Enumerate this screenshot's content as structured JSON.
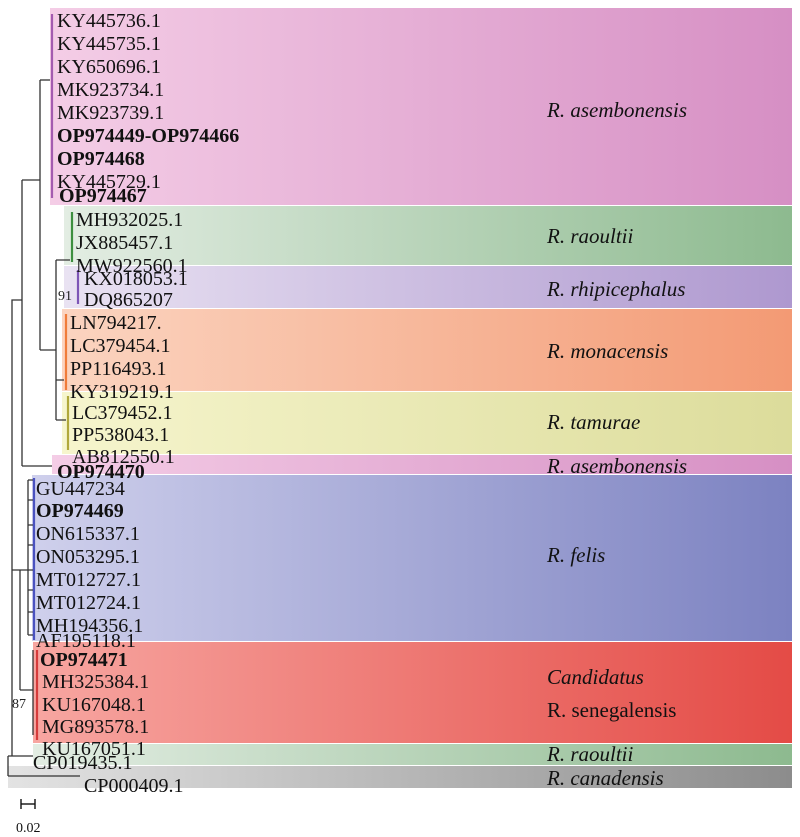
{
  "colors": {
    "asembonensis": [
      "#f4cde6",
      "#d68fc4"
    ],
    "raoultii": [
      "#e3ede3",
      "#8dba8f"
    ],
    "rhipicephalus": [
      "#e9e2f2",
      "#ae98cf"
    ],
    "monacensis": [
      "#fbd4c0",
      "#f39a74"
    ],
    "tamurae": [
      "#f6f5cd",
      "#dcdc9b"
    ],
    "felis": [
      "#cfd0ec",
      "#7c82c1"
    ],
    "senegalensis": [
      "#f7a6a1",
      "#e44b46"
    ],
    "canadensis": [
      "#e3e3e3",
      "#8c8c8c"
    ]
  },
  "clades": [
    {
      "id": "asembonensis-1",
      "label": "R. asembonensis",
      "label2": "",
      "italic": true
    },
    {
      "id": "raoultii-1",
      "label": "R. raoultii",
      "label2": "",
      "italic": true
    },
    {
      "id": "rhipicephalus",
      "label": "R. rhipicephalus",
      "label2": "",
      "italic": true
    },
    {
      "id": "monacensis",
      "label": "R. monacensis",
      "label2": "",
      "italic": true
    },
    {
      "id": "tamurae",
      "label": "R. tamurae",
      "label2": "",
      "italic": true
    },
    {
      "id": "asembonensis-2",
      "label": "R. asembonensis",
      "label2": "",
      "italic": true
    },
    {
      "id": "felis",
      "label": "R. felis",
      "label2": "",
      "italic": true
    },
    {
      "id": "senegalensis",
      "label": "Candidatus",
      "label2": "R. senegalensis",
      "italic": true
    },
    {
      "id": "raoultii-2",
      "label": "R. raoultii",
      "label2": "",
      "italic": true
    },
    {
      "id": "canadensis",
      "label": "R. canadensis",
      "label2": "",
      "italic": true
    }
  ],
  "taxa": [
    {
      "name": "KY445736.1",
      "bold": false
    },
    {
      "name": "KY445735.1",
      "bold": false
    },
    {
      "name": "KY650696.1",
      "bold": false
    },
    {
      "name": "MK923734.1",
      "bold": false
    },
    {
      "name": "MK923739.1",
      "bold": false
    },
    {
      "name": "OP974449-OP974466",
      "bold": true
    },
    {
      "name": "OP974468",
      "bold": true
    },
    {
      "name": "KY445729.1",
      "bold": false
    },
    {
      "name": "OP974467",
      "bold": true
    },
    {
      "name": "MH932025.1",
      "bold": false
    },
    {
      "name": "JX885457.1",
      "bold": false
    },
    {
      "name": "MW922560.1",
      "bold": false
    },
    {
      "name": "KX018053.1",
      "bold": false
    },
    {
      "name": "DQ865207",
      "bold": false
    },
    {
      "name": "LN794217.",
      "bold": false
    },
    {
      "name": "LC379454.1",
      "bold": false
    },
    {
      "name": "PP116493.1",
      "bold": false
    },
    {
      "name": "KY319219.1",
      "bold": false
    },
    {
      "name": "LC379452.1",
      "bold": false
    },
    {
      "name": "PP538043.1",
      "bold": false
    },
    {
      "name": "AB812550.1",
      "bold": false
    },
    {
      "name": "OP974470",
      "bold": true
    },
    {
      "name": "GU447234",
      "bold": false
    },
    {
      "name": "OP974469",
      "bold": true
    },
    {
      "name": "ON615337.1",
      "bold": false
    },
    {
      "name": "ON053295.1",
      "bold": false
    },
    {
      "name": "MT012727.1",
      "bold": false
    },
    {
      "name": "MT012724.1",
      "bold": false
    },
    {
      "name": "MH194356.1",
      "bold": false
    },
    {
      "name": "AF195118.1",
      "bold": false
    },
    {
      "name": "OP974471",
      "bold": true
    },
    {
      "name": "MH325384.1",
      "bold": false
    },
    {
      "name": "KU167048.1",
      "bold": false
    },
    {
      "name": "MG893578.1",
      "bold": false
    },
    {
      "name": "KU167051.1",
      "bold": false
    },
    {
      "name": "CP019435.1",
      "bold": false
    },
    {
      "name": "CP000409.1",
      "bold": false
    }
  ],
  "bootstrap": [
    "91",
    "87"
  ],
  "scale": {
    "label": "0.02"
  }
}
